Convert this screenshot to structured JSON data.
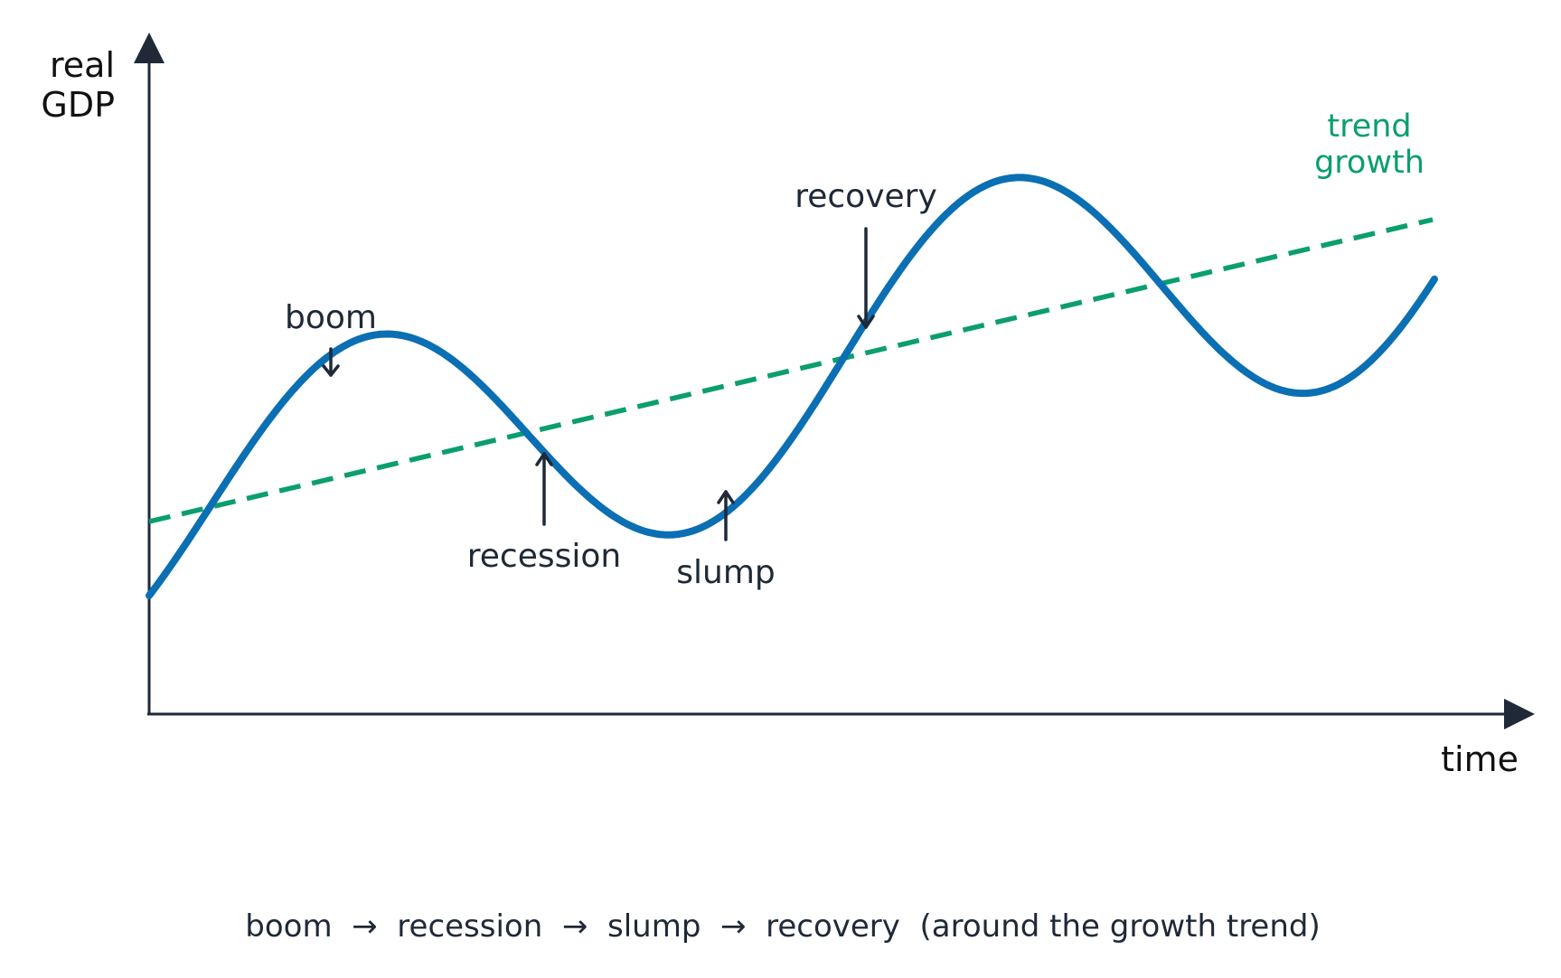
{
  "axes": {
    "y_label_line1": "real",
    "y_label_line2": "GDP",
    "x_label": "time"
  },
  "trend": {
    "label_line1": "trend",
    "label_line2": "growth",
    "color": "#0b9e6e"
  },
  "cycle": {
    "color": "#0b6fb3"
  },
  "phases": {
    "boom": "boom",
    "recession": "recession",
    "slump": "slump",
    "recovery": "recovery"
  },
  "caption": "boom  →  recession  →  slump  →  recovery  (around the growth trend)"
}
